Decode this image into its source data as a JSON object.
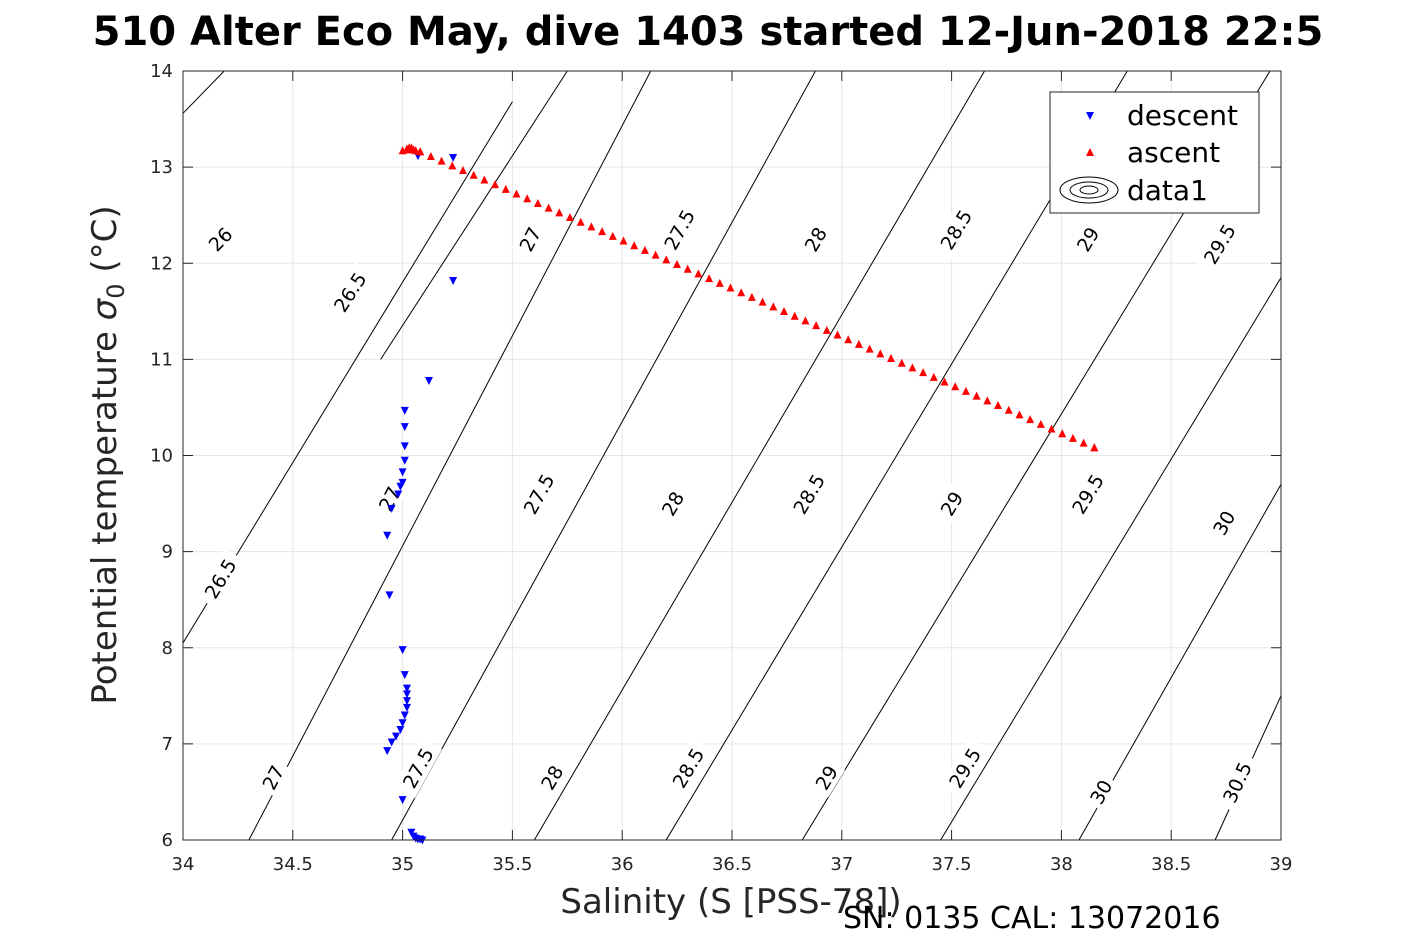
{
  "title": "510 Alter Eco May, dive 1403 started 12-Jun-2018 22:5",
  "footer": "SN: 0135  CAL: 13072016",
  "chart_data": {
    "type": "scatter",
    "title": "510 Alter Eco May, dive 1403 started 12-Jun-2018 22:5",
    "xlabel": "Salinity (S [PSS-78])",
    "ylabel": "Potential temperature σ₀ (°C)",
    "ylabel_parts": [
      "Potential temperature ",
      "σ",
      "0",
      " (°C)"
    ],
    "xlim": [
      34,
      39
    ],
    "ylim": [
      6,
      14
    ],
    "xticks": [
      34,
      34.5,
      35,
      35.5,
      36,
      36.5,
      37,
      37.5,
      38,
      38.5,
      39
    ],
    "xtick_labels": [
      "34",
      "34.5",
      "35",
      "35.5",
      "36",
      "36.5",
      "37",
      "37.5",
      "38",
      "38.5",
      "39"
    ],
    "yticks": [
      6,
      7,
      8,
      9,
      10,
      11,
      12,
      13,
      14
    ],
    "ytick_labels": [
      "6",
      "7",
      "8",
      "9",
      "10",
      "11",
      "12",
      "13",
      "14"
    ],
    "grid": true,
    "legend_position": "top-right",
    "legend": [
      "descent",
      "ascent",
      "data1"
    ],
    "colors": {
      "descent": "#0000ff",
      "ascent": "#ff0000",
      "contour": "#000000",
      "grid": "#e6e6e6"
    },
    "series": [
      {
        "name": "descent",
        "marker": "triangle-down",
        "color": "#0000ff",
        "x": [
          35.07,
          35.23,
          35.23,
          35.12,
          35.01,
          35.01,
          35.01,
          35.01,
          35.0,
          35.0,
          34.99,
          34.98,
          34.95,
          34.93,
          34.94,
          35.0,
          35.01,
          35.02,
          35.02,
          35.02,
          35.02,
          35.01,
          35.0,
          34.99,
          34.97,
          34.95,
          34.93,
          35.0,
          35.04,
          35.05,
          35.06,
          35.07,
          35.08,
          35.09
        ],
        "y": [
          13.12,
          13.1,
          11.82,
          10.78,
          10.47,
          10.3,
          10.1,
          9.95,
          9.83,
          9.72,
          9.68,
          9.6,
          9.45,
          9.17,
          8.55,
          7.98,
          7.72,
          7.58,
          7.52,
          7.45,
          7.38,
          7.3,
          7.22,
          7.15,
          7.08,
          7.02,
          6.93,
          6.42,
          6.08,
          6.04,
          6.02,
          6.01,
          6.01,
          6.0
        ]
      },
      {
        "name": "ascent",
        "marker": "triangle-up",
        "color": "#ff0000",
        "x": [
          35.0,
          35.02,
          35.03,
          35.04,
          35.05,
          35.06,
          35.03,
          35.08,
          38.15
        ],
        "y": [
          13.17,
          13.19,
          13.18,
          13.2,
          13.18,
          13.17,
          13.2,
          13.16,
          10.08
        ],
        "line_of_points": {
          "x_start": 35.08,
          "y_start": 13.16,
          "x_end": 38.15,
          "y_end": 10.08,
          "count": 64
        }
      }
    ],
    "contours": [
      {
        "level": "26",
        "x": [
          34,
          35.04
        ],
        "y": [
          13.56,
          16.0
        ],
        "label_at": [
          34.17,
          12.25
        ]
      },
      {
        "level": "26.5",
        "x": [
          34,
          35.5
        ],
        "y": [
          8.05,
          13.68
        ],
        "label_at": [
          34.17,
          8.72
        ]
      },
      {
        "level": "26.5",
        "x": [
          34.9,
          35.75
        ],
        "y": [
          11.0,
          14.0
        ],
        "label_at": [
          34.76,
          11.7
        ]
      },
      {
        "level": "27",
        "x": [
          34.3,
          36.13
        ],
        "y": [
          6.0,
          14.0
        ],
        "label_at": [
          34.41,
          6.65
        ]
      },
      {
        "level": "27",
        "x": [
          34.3,
          36.13
        ],
        "y": [
          6.0,
          14.0
        ],
        "label_at": [
          34.94,
          9.55
        ]
      },
      {
        "level": "27",
        "x": [
          34.3,
          36.13
        ],
        "y": [
          6.0,
          14.0
        ],
        "label_at": [
          35.58,
          12.25
        ]
      },
      {
        "level": "27.5",
        "x": [
          34.95,
          36.88
        ],
        "y": [
          6.0,
          14.0
        ],
        "label_at": [
          35.07,
          6.75
        ]
      },
      {
        "level": "27.5",
        "x": [
          34.95,
          36.88
        ],
        "y": [
          6.0,
          14.0
        ],
        "label_at": [
          35.62,
          9.6
        ]
      },
      {
        "level": "27.5",
        "x": [
          34.95,
          36.88
        ],
        "y": [
          6.0,
          14.0
        ],
        "label_at": [
          36.26,
          12.35
        ]
      },
      {
        "level": "28",
        "x": [
          35.6,
          37.65
        ],
        "y": [
          6.0,
          14.0
        ],
        "label_at": [
          35.68,
          6.65
        ]
      },
      {
        "level": "28",
        "x": [
          35.6,
          37.65
        ],
        "y": [
          6.0,
          14.0
        ],
        "label_at": [
          36.23,
          9.5
        ]
      },
      {
        "level": "28",
        "x": [
          35.6,
          37.65
        ],
        "y": [
          6.0,
          14.0
        ],
        "label_at": [
          36.88,
          12.25
        ]
      },
      {
        "level": "28.5",
        "x": [
          36.2,
          38.3
        ],
        "y": [
          6.0,
          14.0
        ],
        "label_at": [
          36.3,
          6.75
        ]
      },
      {
        "level": "28.5",
        "x": [
          36.2,
          38.3
        ],
        "y": [
          6.0,
          14.0
        ],
        "label_at": [
          36.85,
          9.6
        ]
      },
      {
        "level": "28.5",
        "x": [
          36.2,
          38.3
        ],
        "y": [
          6.0,
          14.0
        ],
        "label_at": [
          37.52,
          12.35
        ]
      },
      {
        "level": "29",
        "x": [
          36.82,
          38.95
        ],
        "y": [
          6.0,
          14.0
        ],
        "label_at": [
          36.93,
          6.65
        ]
      },
      {
        "level": "29",
        "x": [
          36.82,
          38.95
        ],
        "y": [
          6.0,
          14.0
        ],
        "label_at": [
          37.5,
          9.5
        ]
      },
      {
        "level": "29",
        "x": [
          36.82,
          38.95
        ],
        "y": [
          6.0,
          14.0
        ],
        "label_at": [
          38.12,
          12.25
        ]
      },
      {
        "level": "29.5",
        "x": [
          37.45,
          39.0
        ],
        "y": [
          6.0,
          11.85
        ],
        "label_at": [
          37.56,
          6.75
        ]
      },
      {
        "level": "29.5",
        "x": [
          37.45,
          39.0
        ],
        "y": [
          6.0,
          11.85
        ],
        "label_at": [
          38.12,
          9.6
        ]
      },
      {
        "level": "29.5",
        "x": [
          37.45,
          39.0
        ],
        "y": [
          6.0,
          11.85
        ],
        "label_at": [
          38.72,
          12.2
        ]
      },
      {
        "level": "30",
        "x": [
          38.08,
          39.0
        ],
        "y": [
          6.0,
          9.7
        ],
        "label_at": [
          38.18,
          6.5
        ]
      },
      {
        "level": "30",
        "x": [
          38.08,
          39.0
        ],
        "y": [
          6.0,
          9.7
        ],
        "label_at": [
          38.74,
          9.3
        ]
      },
      {
        "level": "30.5",
        "x": [
          38.7,
          39.0
        ],
        "y": [
          6.0,
          7.5
        ],
        "label_at": [
          38.8,
          6.6
        ]
      }
    ]
  }
}
